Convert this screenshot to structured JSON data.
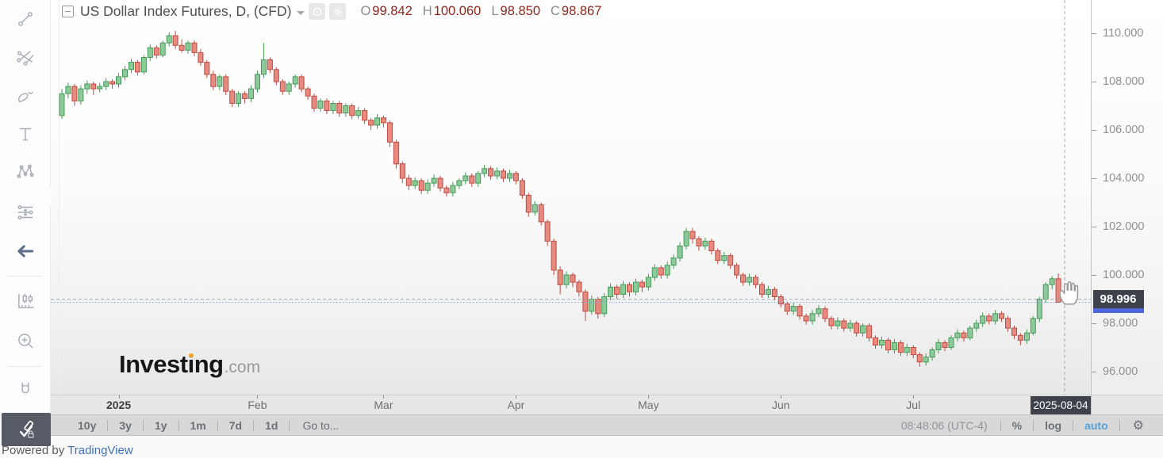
{
  "header": {
    "title": "US Dollar Index Futures, D, (CFD)",
    "ohlc": {
      "o_label": "O",
      "o": "99.842",
      "h_label": "H",
      "h": "100.060",
      "l_label": "L",
      "l": "98.850",
      "c_label": "C",
      "c": "98.867"
    }
  },
  "sidebar": {
    "tools": [
      "trend-line",
      "gann-fibonacci-tools",
      "brush",
      "text",
      "xabcd-pattern",
      "long-position",
      "undo-arrow",
      "bar-pattern",
      "zoom-in",
      "magnet",
      "drawing-toolbar-toggle"
    ]
  },
  "watermark": {
    "brand": "Investing",
    "suffix": ".com"
  },
  "price_axis": {
    "ticks": [
      {
        "label": "110.000",
        "value": 110
      },
      {
        "label": "108.000",
        "value": 108
      },
      {
        "label": "106.000",
        "value": 106
      },
      {
        "label": "104.000",
        "value": 104
      },
      {
        "label": "102.000",
        "value": 102
      },
      {
        "label": "100.000",
        "value": 100
      },
      {
        "label": "98.000",
        "value": 98
      },
      {
        "label": "96.000",
        "value": 96
      }
    ],
    "crosshair_price": "98.996"
  },
  "time_axis": {
    "labels": [
      {
        "text": "2025",
        "index": 9,
        "bold": true
      },
      {
        "text": "Feb",
        "index": 31
      },
      {
        "text": "Mar",
        "index": 51
      },
      {
        "text": "Apr",
        "index": 72
      },
      {
        "text": "May",
        "index": 93
      },
      {
        "text": "Jun",
        "index": 114
      },
      {
        "text": "Jul",
        "index": 135
      }
    ],
    "crosshair_date": "2025-08-04"
  },
  "toolbar": {
    "ranges": [
      "10y",
      "3y",
      "1y",
      "1m",
      "7d",
      "1d"
    ],
    "goto": "Go to...",
    "clock": "08:48:06 (UTC-4)",
    "percent": "%",
    "log": "log",
    "auto": "auto"
  },
  "footer": {
    "powered": "Powered by",
    "brand": "TradingView"
  },
  "colors": {
    "accent_blue": "#54a0d8",
    "badge_bg": "#3e424b",
    "last_price_badge_blue": "#4f66d8",
    "ohlc_value_red": "#8f241b",
    "link_blue": "#3d6fbe",
    "watermark_dot_orange": "#f7a528"
  },
  "chart_data": {
    "type": "candlestick",
    "title": "US Dollar Index Futures",
    "interval": "D",
    "x_start": "2024-12-16",
    "x_end": "2025-08-04",
    "ylim": [
      95.0,
      111.4
    ],
    "y_ticks": [
      96,
      98,
      100,
      102,
      104,
      106,
      108,
      110
    ],
    "grid": false,
    "up_color": "#8dca9b",
    "up_border": "#459a56",
    "down_color": "#e78a80",
    "down_border": "#bf4a41",
    "last_close": 98.867,
    "crosshair": {
      "price": 98.996,
      "date": "2025-08-04"
    },
    "candles": [
      [
        106.6,
        107.7,
        106.45,
        107.5
      ],
      [
        107.5,
        107.95,
        107.3,
        107.8
      ],
      [
        107.8,
        107.9,
        107.0,
        107.2
      ],
      [
        107.2,
        107.85,
        107.05,
        107.7
      ],
      [
        107.7,
        108.05,
        107.5,
        107.9
      ],
      [
        107.9,
        108.0,
        107.45,
        107.7
      ],
      [
        107.7,
        107.95,
        107.55,
        107.8
      ],
      [
        107.8,
        108.15,
        107.65,
        108.0
      ],
      [
        108.0,
        108.1,
        107.7,
        107.9
      ],
      [
        107.9,
        108.35,
        107.75,
        108.2
      ],
      [
        108.2,
        108.65,
        108.05,
        108.5
      ],
      [
        108.5,
        108.95,
        108.35,
        108.8
      ],
      [
        108.8,
        108.9,
        108.25,
        108.4
      ],
      [
        108.4,
        109.1,
        108.3,
        109.0
      ],
      [
        109.0,
        109.55,
        108.85,
        109.4
      ],
      [
        109.4,
        109.5,
        108.95,
        109.1
      ],
      [
        109.1,
        109.7,
        109.0,
        109.6
      ],
      [
        109.6,
        110.05,
        109.45,
        109.9
      ],
      [
        109.9,
        110.1,
        109.35,
        109.5
      ],
      [
        109.5,
        109.75,
        109.2,
        109.3
      ],
      [
        109.3,
        109.7,
        109.15,
        109.6
      ],
      [
        109.6,
        109.7,
        109.05,
        109.2
      ],
      [
        109.2,
        109.35,
        108.65,
        108.8
      ],
      [
        108.8,
        108.9,
        108.15,
        108.3
      ],
      [
        108.3,
        108.45,
        107.65,
        107.8
      ],
      [
        107.8,
        108.3,
        107.65,
        108.2
      ],
      [
        108.2,
        108.3,
        107.45,
        107.6
      ],
      [
        107.6,
        107.7,
        106.95,
        107.1
      ],
      [
        107.1,
        107.6,
        106.95,
        107.5
      ],
      [
        107.5,
        107.6,
        107.1,
        107.3
      ],
      [
        107.3,
        107.85,
        107.15,
        107.7
      ],
      [
        107.7,
        108.45,
        107.55,
        108.3
      ],
      [
        108.3,
        109.6,
        108.15,
        108.9
      ],
      [
        108.9,
        109.0,
        108.35,
        108.5
      ],
      [
        108.5,
        108.6,
        107.85,
        108.0
      ],
      [
        108.0,
        108.1,
        107.45,
        107.6
      ],
      [
        107.6,
        108.0,
        107.45,
        107.9
      ],
      [
        107.9,
        108.3,
        107.75,
        108.2
      ],
      [
        108.2,
        108.3,
        107.55,
        107.7
      ],
      [
        107.7,
        107.8,
        107.25,
        107.4
      ],
      [
        107.4,
        107.5,
        106.75,
        106.9
      ],
      [
        106.9,
        107.3,
        106.75,
        107.2
      ],
      [
        107.2,
        107.3,
        106.65,
        106.8
      ],
      [
        106.8,
        107.2,
        106.65,
        107.1
      ],
      [
        107.1,
        107.2,
        106.55,
        106.7
      ],
      [
        106.7,
        107.1,
        106.55,
        107.0
      ],
      [
        107.0,
        107.1,
        106.45,
        106.6
      ],
      [
        106.6,
        106.95,
        106.45,
        106.8
      ],
      [
        106.8,
        106.9,
        106.25,
        106.4
      ],
      [
        106.4,
        106.5,
        106.0,
        106.2
      ],
      [
        106.2,
        106.65,
        106.05,
        106.5
      ],
      [
        106.5,
        106.6,
        106.1,
        106.3
      ],
      [
        106.3,
        106.4,
        105.3,
        105.5
      ],
      [
        105.5,
        105.6,
        104.4,
        104.6
      ],
      [
        104.6,
        104.7,
        103.8,
        104.0
      ],
      [
        104.0,
        104.15,
        103.5,
        103.7
      ],
      [
        103.7,
        104.05,
        103.55,
        103.9
      ],
      [
        103.9,
        104.0,
        103.35,
        103.5
      ],
      [
        103.5,
        103.95,
        103.35,
        103.8
      ],
      [
        103.8,
        104.15,
        103.65,
        104.0
      ],
      [
        104.0,
        104.1,
        103.45,
        103.6
      ],
      [
        103.6,
        103.7,
        103.25,
        103.4
      ],
      [
        103.4,
        103.85,
        103.25,
        103.7
      ],
      [
        103.7,
        104.0,
        103.55,
        103.9
      ],
      [
        103.9,
        104.25,
        103.75,
        104.1
      ],
      [
        104.1,
        104.2,
        103.65,
        103.8
      ],
      [
        103.8,
        104.3,
        103.65,
        104.2
      ],
      [
        104.2,
        104.55,
        104.05,
        104.4
      ],
      [
        104.4,
        104.5,
        103.95,
        104.1
      ],
      [
        104.1,
        104.45,
        103.95,
        104.3
      ],
      [
        104.3,
        104.4,
        103.85,
        104.0
      ],
      [
        104.0,
        104.35,
        103.85,
        104.2
      ],
      [
        104.2,
        104.3,
        103.75,
        103.9
      ],
      [
        103.9,
        104.0,
        103.15,
        103.3
      ],
      [
        103.3,
        103.4,
        102.4,
        102.6
      ],
      [
        102.6,
        103.05,
        102.45,
        102.9
      ],
      [
        102.9,
        103.0,
        102.05,
        102.2
      ],
      [
        102.2,
        102.3,
        101.2,
        101.4
      ],
      [
        101.4,
        101.5,
        100.0,
        100.2
      ],
      [
        100.2,
        100.35,
        99.2,
        99.6
      ],
      [
        99.6,
        100.15,
        99.45,
        100.0
      ],
      [
        100.0,
        100.1,
        99.5,
        99.7
      ],
      [
        99.7,
        99.8,
        99.1,
        99.3
      ],
      [
        99.3,
        99.4,
        98.1,
        98.5
      ],
      [
        98.5,
        99.15,
        98.35,
        99.0
      ],
      [
        99.0,
        99.1,
        98.2,
        98.4
      ],
      [
        98.4,
        99.25,
        98.25,
        99.1
      ],
      [
        99.1,
        99.65,
        98.95,
        99.5
      ],
      [
        99.5,
        99.6,
        99.0,
        99.2
      ],
      [
        99.2,
        99.75,
        99.05,
        99.6
      ],
      [
        99.6,
        99.7,
        99.1,
        99.3
      ],
      [
        99.3,
        99.85,
        99.15,
        99.7
      ],
      [
        99.7,
        99.8,
        99.3,
        99.5
      ],
      [
        99.5,
        100.05,
        99.35,
        99.9
      ],
      [
        99.9,
        100.45,
        99.75,
        100.3
      ],
      [
        100.3,
        100.4,
        99.85,
        100.0
      ],
      [
        100.0,
        100.55,
        99.85,
        100.4
      ],
      [
        100.4,
        100.85,
        100.25,
        100.7
      ],
      [
        100.7,
        101.35,
        100.55,
        101.2
      ],
      [
        101.2,
        101.95,
        101.05,
        101.8
      ],
      [
        101.8,
        101.95,
        101.3,
        101.5
      ],
      [
        101.5,
        101.6,
        101.0,
        101.2
      ],
      [
        101.2,
        101.55,
        101.05,
        101.4
      ],
      [
        101.4,
        101.5,
        100.85,
        101.0
      ],
      [
        101.0,
        101.1,
        100.45,
        100.6
      ],
      [
        100.6,
        100.95,
        100.45,
        100.8
      ],
      [
        100.8,
        100.9,
        100.25,
        100.4
      ],
      [
        100.4,
        100.5,
        99.85,
        100.0
      ],
      [
        100.0,
        100.1,
        99.55,
        99.7
      ],
      [
        99.7,
        100.05,
        99.55,
        99.9
      ],
      [
        99.9,
        100.0,
        99.45,
        99.6
      ],
      [
        99.6,
        99.7,
        99.05,
        99.2
      ],
      [
        99.2,
        99.55,
        99.05,
        99.4
      ],
      [
        99.4,
        99.5,
        98.95,
        99.1
      ],
      [
        99.1,
        99.2,
        98.65,
        98.8
      ],
      [
        98.8,
        98.9,
        98.35,
        98.5
      ],
      [
        98.5,
        98.85,
        98.35,
        98.7
      ],
      [
        98.7,
        98.8,
        98.15,
        98.3
      ],
      [
        98.3,
        98.4,
        97.95,
        98.1
      ],
      [
        98.1,
        98.55,
        97.95,
        98.4
      ],
      [
        98.4,
        98.75,
        98.25,
        98.6
      ],
      [
        98.6,
        98.7,
        98.05,
        98.2
      ],
      [
        98.2,
        98.3,
        97.75,
        97.9
      ],
      [
        97.9,
        98.25,
        97.75,
        98.1
      ],
      [
        98.1,
        98.2,
        97.65,
        97.8
      ],
      [
        97.8,
        98.15,
        97.65,
        98.0
      ],
      [
        98.0,
        98.1,
        97.45,
        97.6
      ],
      [
        97.6,
        98.0,
        97.45,
        97.9
      ],
      [
        97.9,
        98.0,
        97.25,
        97.4
      ],
      [
        97.4,
        97.5,
        96.95,
        97.1
      ],
      [
        97.1,
        97.45,
        96.95,
        97.3
      ],
      [
        97.3,
        97.4,
        96.75,
        96.9
      ],
      [
        96.9,
        97.35,
        96.75,
        97.2
      ],
      [
        97.2,
        97.3,
        96.65,
        96.8
      ],
      [
        96.8,
        97.15,
        96.65,
        97.0
      ],
      [
        97.0,
        97.1,
        96.55,
        96.7
      ],
      [
        96.7,
        96.8,
        96.2,
        96.4
      ],
      [
        96.4,
        96.75,
        96.25,
        96.6
      ],
      [
        96.6,
        97.0,
        96.45,
        96.9
      ],
      [
        96.9,
        97.35,
        96.75,
        97.2
      ],
      [
        97.2,
        97.3,
        96.85,
        97.0
      ],
      [
        97.0,
        97.5,
        96.9,
        97.4
      ],
      [
        97.4,
        97.75,
        97.25,
        97.6
      ],
      [
        97.6,
        97.7,
        97.25,
        97.4
      ],
      [
        97.4,
        97.9,
        97.3,
        97.8
      ],
      [
        97.8,
        98.15,
        97.65,
        98.0
      ],
      [
        98.0,
        98.45,
        97.85,
        98.3
      ],
      [
        98.3,
        98.4,
        97.95,
        98.1
      ],
      [
        98.1,
        98.55,
        97.95,
        98.4
      ],
      [
        98.4,
        98.5,
        98.05,
        98.2
      ],
      [
        98.2,
        98.3,
        97.65,
        97.8
      ],
      [
        97.8,
        97.9,
        97.35,
        97.5
      ],
      [
        97.5,
        97.6,
        97.1,
        97.3
      ],
      [
        97.3,
        97.75,
        97.15,
        97.6
      ],
      [
        97.6,
        98.3,
        97.5,
        98.2
      ],
      [
        98.2,
        99.1,
        98.05,
        99.0
      ],
      [
        99.0,
        99.7,
        98.85,
        99.6
      ],
      [
        99.6,
        99.95,
        99.4,
        99.842
      ],
      [
        99.842,
        100.06,
        98.85,
        98.867
      ]
    ]
  }
}
